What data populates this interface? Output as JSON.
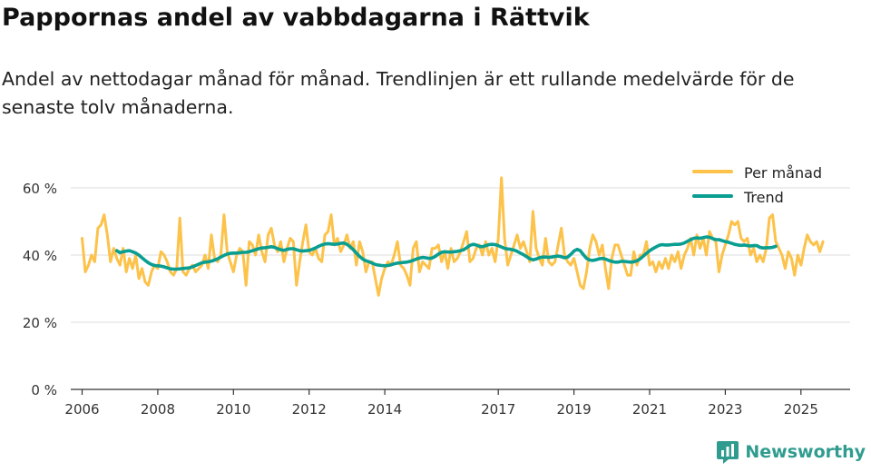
{
  "title": "Pappornas andel av vabbdagarna i Rättvik",
  "subtitle": "Andel av nettodagar månad för månad. Trendlinjen är ett rullande medelvärde för de senaste tolv månaderna.",
  "brand": {
    "name": "Newsworthy",
    "color": "#2f9c8f"
  },
  "colors": {
    "monthly": "#fcc24a",
    "trend": "#0a9e91",
    "grid": "#dddddd",
    "axis": "#333333"
  },
  "chart_data": {
    "type": "line",
    "title": "Pappornas andel av vabbdagarna i Rättvik",
    "xlabel": "",
    "ylabel": "",
    "xlim": [
      2005.7,
      2026.3
    ],
    "ylim": [
      0,
      60
    ],
    "yticks": [
      0,
      20,
      40,
      60
    ],
    "ytick_labels": [
      "0 %",
      "20 %",
      "40 %",
      "60 %"
    ],
    "xticks": [
      2006,
      2008,
      2010,
      2012,
      2014,
      2017,
      2019,
      2021,
      2023,
      2025
    ],
    "xtick_labels": [
      "2006",
      "2008",
      "2010",
      "2012",
      "2014",
      "2017",
      "2019",
      "2021",
      "2023",
      "2025"
    ],
    "legend": {
      "position": "top-right",
      "entries": [
        "Per månad",
        "Trend"
      ]
    },
    "series": [
      {
        "name": "Per månad",
        "start": 2006.0,
        "step": 0.0833333,
        "values": [
          45,
          35,
          37,
          40,
          38,
          48,
          49,
          52,
          46,
          38,
          42,
          39,
          37,
          42,
          35,
          39,
          36,
          40,
          33,
          36,
          32,
          31,
          35,
          37,
          36,
          41,
          40,
          38,
          35,
          34,
          36,
          51,
          35,
          34,
          36,
          37,
          35,
          36,
          37,
          40,
          36,
          46,
          39,
          38,
          40,
          52,
          41,
          38,
          35,
          40,
          42,
          41,
          31,
          44,
          43,
          40,
          46,
          41,
          38,
          46,
          48,
          43,
          41,
          44,
          38,
          42,
          45,
          44,
          31,
          38,
          44,
          49,
          41,
          40,
          42,
          39,
          38,
          46,
          47,
          52,
          43,
          45,
          41,
          43,
          46,
          42,
          44,
          37,
          44,
          41,
          35,
          38,
          38,
          33,
          28,
          33,
          36,
          38,
          37,
          40,
          44,
          37,
          36,
          34,
          31,
          42,
          44,
          35,
          38,
          37,
          36,
          42,
          42,
          43,
          38,
          41,
          36,
          42,
          38,
          39,
          41,
          44,
          47,
          38,
          39,
          42,
          43,
          40,
          44,
          40,
          42,
          38,
          45,
          63,
          45,
          37,
          40,
          43,
          46,
          42,
          44,
          41,
          38,
          53,
          42,
          39,
          37,
          45,
          38,
          37,
          38,
          43,
          48,
          40,
          38,
          37,
          39,
          35,
          31,
          30,
          35,
          42,
          46,
          44,
          40,
          43,
          36,
          30,
          39,
          43,
          43,
          40,
          37,
          34,
          34,
          41,
          37,
          40,
          40,
          44,
          37,
          38,
          35,
          38,
          36,
          39,
          36,
          40,
          38,
          41,
          36,
          40,
          42,
          45,
          40,
          46,
          42,
          45,
          40,
          47,
          45,
          44,
          35,
          40,
          43,
          46,
          50,
          49,
          50,
          45,
          44,
          45,
          40,
          42,
          38,
          40,
          38,
          42,
          51,
          52,
          44,
          42,
          40,
          36,
          41,
          39,
          34,
          40,
          37,
          42,
          46,
          44,
          43,
          44,
          41,
          44
        ]
      },
      {
        "name": "Trend",
        "start": 2006.917,
        "step": 0.0833333,
        "values": [
          41.3,
          40.7,
          41.0,
          41.2,
          41.3,
          41.0,
          40.6,
          40.0,
          39.2,
          38.4,
          37.7,
          37.2,
          36.9,
          36.8,
          36.7,
          36.5,
          36.2,
          35.9,
          35.8,
          35.8,
          35.9,
          36.0,
          36.1,
          36.2,
          36.5,
          36.9,
          37.3,
          37.7,
          37.9,
          38.0,
          38.2,
          38.5,
          38.9,
          39.4,
          39.9,
          40.3,
          40.5,
          40.6,
          40.6,
          40.7,
          40.8,
          40.8,
          41.0,
          41.3,
          41.6,
          41.9,
          42.1,
          42.2,
          42.3,
          42.5,
          42.3,
          41.9,
          41.6,
          41.4,
          41.7,
          41.9,
          41.9,
          41.6,
          41.3,
          41.2,
          41.3,
          41.4,
          41.7,
          42.1,
          42.6,
          43.0,
          43.3,
          43.4,
          43.3,
          43.2,
          43.3,
          43.5,
          43.6,
          43.2,
          42.5,
          41.6,
          40.6,
          39.6,
          38.8,
          38.3,
          38.0,
          37.6,
          37.2,
          37.0,
          36.9,
          36.8,
          36.9,
          37.1,
          37.4,
          37.6,
          37.7,
          37.8,
          37.9,
          38.1,
          38.4,
          38.8,
          39.1,
          39.3,
          39.2,
          39.0,
          39.1,
          39.6,
          40.3,
          40.8,
          41.0,
          40.9,
          40.9,
          41.0,
          41.1,
          41.3,
          41.6,
          42.2,
          42.9,
          43.2,
          43.0,
          42.6,
          42.5,
          42.8,
          43.1,
          43.2,
          43.1,
          42.8,
          42.4,
          42.0,
          41.8,
          41.7,
          41.5,
          41.1,
          40.6,
          40.1,
          39.5,
          38.9,
          38.6,
          38.8,
          39.2,
          39.4,
          39.4,
          39.3,
          39.4,
          39.6,
          39.7,
          39.5,
          39.2,
          39.4,
          40.2,
          41.2,
          41.7,
          41.3,
          40.1,
          39.0,
          38.5,
          38.4,
          38.6,
          38.9,
          39.0,
          38.8,
          38.4,
          38.1,
          37.9,
          37.9,
          38.1,
          38.1,
          38.0,
          37.9,
          38.0,
          38.3,
          38.9,
          39.7,
          40.5,
          41.3,
          41.9,
          42.4,
          42.9,
          43.1,
          43.0,
          43.0,
          43.1,
          43.2,
          43.2,
          43.3,
          43.6,
          44.1,
          44.6,
          45.0,
          45.1,
          45.0,
          45.2,
          45.4,
          45.3,
          44.9,
          44.6,
          44.6,
          44.3,
          44.0,
          43.8,
          43.5,
          43.2,
          43.0,
          42.9,
          43.0,
          42.8,
          42.7,
          42.8,
          42.8,
          42.3,
          42.1,
          42.2,
          42.2,
          42.3,
          42.6
        ]
      }
    ]
  }
}
